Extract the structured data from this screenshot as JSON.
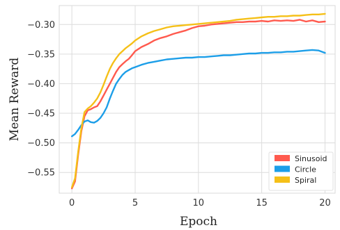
{
  "chart_data": {
    "type": "line",
    "title": "",
    "xlabel": "Epoch",
    "ylabel": "Mean Reward",
    "xlim": [
      -1.0,
      20.8
    ],
    "ylim": [
      -0.585,
      -0.268
    ],
    "xticks": [
      0,
      5,
      10,
      15,
      20
    ],
    "yticks": [
      -0.55,
      -0.5,
      -0.45,
      -0.4,
      -0.35,
      -0.3
    ],
    "ytick_labels": [
      "−0.55",
      "−0.50",
      "−0.45",
      "−0.40",
      "−0.35",
      "−0.30"
    ],
    "grid": true,
    "legend_position": "bottom-right",
    "series": [
      {
        "name": "Sinusoid",
        "color": "#ff5a4e",
        "x": [
          0,
          0.25,
          0.5,
          0.75,
          1,
          1.25,
          1.5,
          1.75,
          2,
          2.25,
          2.5,
          2.75,
          3,
          3.25,
          3.5,
          3.75,
          4,
          4.25,
          4.5,
          4.75,
          5,
          5.5,
          6,
          6.5,
          7,
          7.5,
          8,
          8.5,
          9,
          9.5,
          10,
          10.5,
          11,
          11.5,
          12,
          12.5,
          13,
          13.5,
          14,
          14.5,
          15,
          15.5,
          16,
          16.5,
          17,
          17.5,
          18,
          18.5,
          19,
          19.5,
          20
        ],
        "y": [
          -0.577,
          -0.565,
          -0.52,
          -0.48,
          -0.455,
          -0.445,
          -0.443,
          -0.44,
          -0.438,
          -0.43,
          -0.42,
          -0.41,
          -0.4,
          -0.39,
          -0.38,
          -0.372,
          -0.367,
          -0.362,
          -0.358,
          -0.352,
          -0.345,
          -0.338,
          -0.333,
          -0.327,
          -0.323,
          -0.32,
          -0.316,
          -0.313,
          -0.31,
          -0.306,
          -0.303,
          -0.302,
          -0.3,
          -0.299,
          -0.298,
          -0.297,
          -0.296,
          -0.296,
          -0.295,
          -0.295,
          -0.294,
          -0.295,
          -0.293,
          -0.294,
          -0.293,
          -0.294,
          -0.292,
          -0.295,
          -0.293,
          -0.296,
          -0.295
        ]
      },
      {
        "name": "Circle",
        "color": "#1c9ee8",
        "x": [
          0,
          0.25,
          0.5,
          0.75,
          1,
          1.25,
          1.5,
          1.75,
          2,
          2.25,
          2.5,
          2.75,
          3,
          3.25,
          3.5,
          3.75,
          4,
          4.25,
          4.5,
          4.75,
          5,
          5.5,
          6,
          6.5,
          7,
          7.5,
          8,
          8.5,
          9,
          9.5,
          10,
          10.5,
          11,
          11.5,
          12,
          12.5,
          13,
          13.5,
          14,
          14.5,
          15,
          15.5,
          16,
          16.5,
          17,
          17.5,
          18,
          18.5,
          19,
          19.5,
          20
        ],
        "y": [
          -0.489,
          -0.485,
          -0.478,
          -0.47,
          -0.464,
          -0.462,
          -0.465,
          -0.466,
          -0.463,
          -0.458,
          -0.45,
          -0.44,
          -0.425,
          -0.412,
          -0.4,
          -0.392,
          -0.385,
          -0.38,
          -0.377,
          -0.374,
          -0.372,
          -0.368,
          -0.365,
          -0.363,
          -0.361,
          -0.359,
          -0.358,
          -0.357,
          -0.356,
          -0.356,
          -0.355,
          -0.355,
          -0.354,
          -0.353,
          -0.352,
          -0.352,
          -0.351,
          -0.35,
          -0.349,
          -0.349,
          -0.348,
          -0.348,
          -0.347,
          -0.347,
          -0.346,
          -0.346,
          -0.345,
          -0.344,
          -0.343,
          -0.344,
          -0.348
        ]
      },
      {
        "name": "Spiral",
        "color": "#f5c018",
        "x": [
          0,
          0.25,
          0.5,
          0.75,
          1,
          1.25,
          1.5,
          1.75,
          2,
          2.25,
          2.5,
          2.75,
          3,
          3.25,
          3.5,
          3.75,
          4,
          4.25,
          4.5,
          4.75,
          5,
          5.5,
          6,
          6.5,
          7,
          7.5,
          8,
          8.5,
          9,
          9.5,
          10,
          10.5,
          11,
          11.5,
          12,
          12.5,
          13,
          13.5,
          14,
          14.5,
          15,
          15.5,
          16,
          16.5,
          17,
          17.5,
          18,
          18.5,
          19,
          19.5,
          20
        ],
        "y": [
          -0.575,
          -0.56,
          -0.515,
          -0.475,
          -0.448,
          -0.442,
          -0.438,
          -0.432,
          -0.425,
          -0.415,
          -0.402,
          -0.388,
          -0.375,
          -0.365,
          -0.357,
          -0.35,
          -0.345,
          -0.34,
          -0.336,
          -0.332,
          -0.327,
          -0.32,
          -0.315,
          -0.311,
          -0.308,
          -0.305,
          -0.303,
          -0.302,
          -0.301,
          -0.3,
          -0.299,
          -0.298,
          -0.297,
          -0.296,
          -0.295,
          -0.294,
          -0.292,
          -0.291,
          -0.29,
          -0.289,
          -0.288,
          -0.287,
          -0.287,
          -0.286,
          -0.286,
          -0.285,
          -0.285,
          -0.284,
          -0.283,
          -0.283,
          -0.282
        ]
      }
    ]
  }
}
